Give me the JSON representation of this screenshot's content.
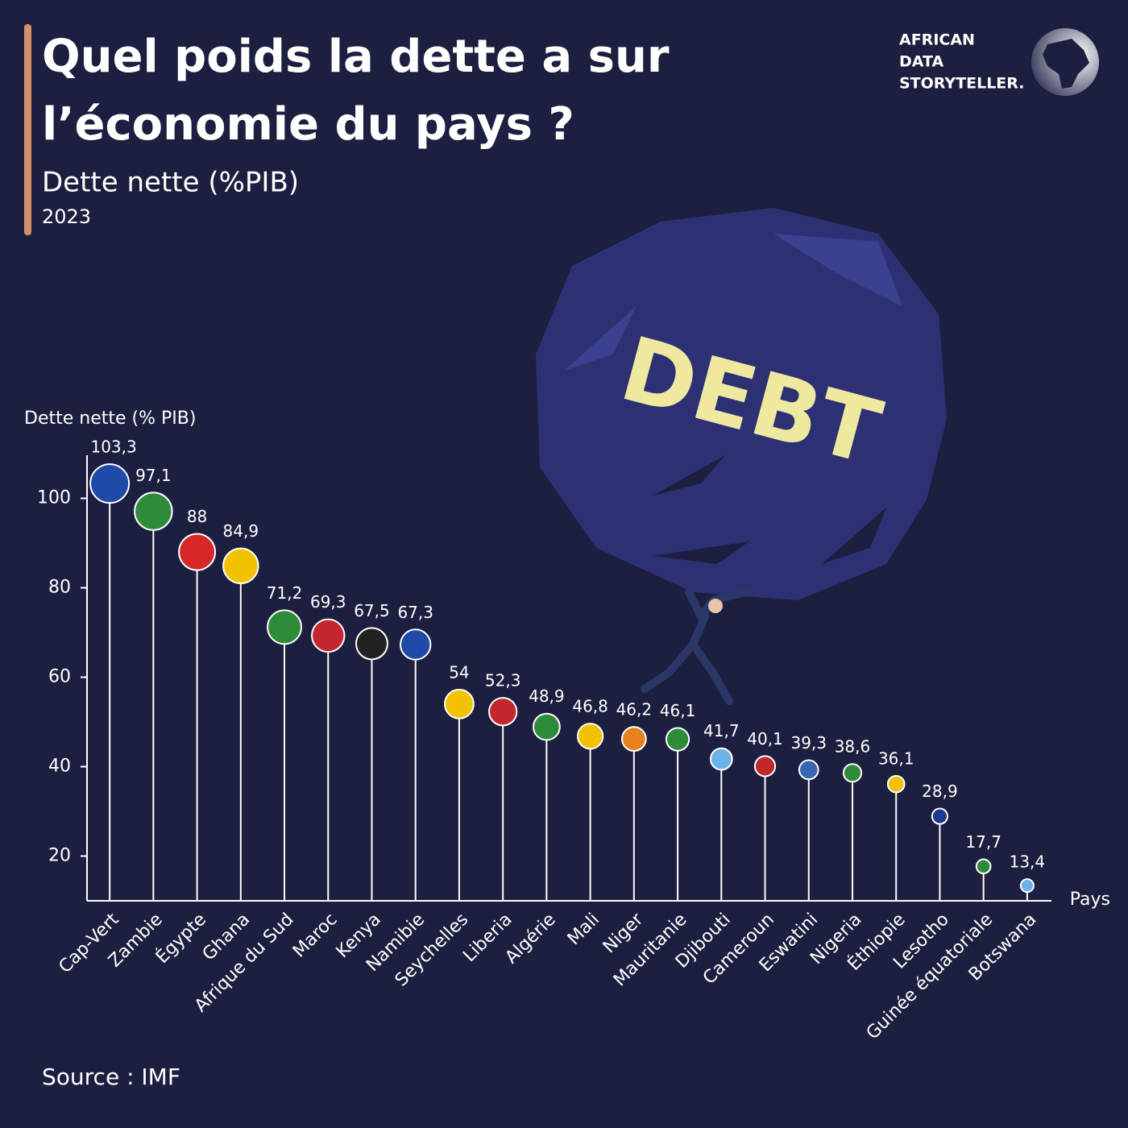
{
  "chart_data": {
    "type": "lollipop",
    "title": [
      "Quel poids la dette a sur",
      "l’économie du pays ?"
    ],
    "subtitle": "Dette nette (%PIB)",
    "year": "2023",
    "y_label": "Dette nette (% PIB)",
    "x_label": "Pays",
    "source": "Source : IMF",
    "logo": [
      "AFRICAN",
      "DATA",
      "STORYTELLER."
    ],
    "illustration_text": "DEBT",
    "categories": [
      "Cap-Vert",
      "Zambie",
      "Égypte",
      "Ghana",
      "Afrique du Sud",
      "Maroc",
      "Kenya",
      "Namibie",
      "Seychelles",
      "Liberia",
      "Algérie",
      "Mali",
      "Niger",
      "Mauritanie",
      "Djibouti",
      "Cameroun",
      "Eswatini",
      "Nigeria",
      "Éthiopie",
      "Lesotho",
      "Guinée équatoriale",
      "Botswana"
    ],
    "values": [
      103.3,
      97.1,
      88,
      84.9,
      71.2,
      69.3,
      67.5,
      67.3,
      54,
      52.3,
      48.9,
      46.8,
      46.2,
      46.1,
      41.7,
      40.1,
      39.3,
      38.6,
      36.1,
      28.9,
      17.7,
      13.4
    ],
    "value_labels": [
      "103,3",
      "97,1",
      "88",
      "84,9",
      "71,2",
      "69,3",
      "67,5",
      "67,3",
      "54",
      "52,3",
      "48,9",
      "46,8",
      "46,2",
      "46,1",
      "41,7",
      "40,1",
      "39,3",
      "38,6",
      "36,1",
      "28,9",
      "17,7",
      "13,4"
    ],
    "colors": [
      "#1f4aa8",
      "#2e8b3a",
      "#d62828",
      "#f2c200",
      "#2e8b3a",
      "#c1272d",
      "#222222",
      "#1f4aa8",
      "#f2c200",
      "#c1272d",
      "#2e8b3a",
      "#f2c200",
      "#e8821e",
      "#2e8b3a",
      "#6ab2e7",
      "#c1272d",
      "#3a66b0",
      "#2e8b3a",
      "#f2c200",
      "#1f3a93",
      "#2e8b3a",
      "#6ab2e7"
    ],
    "line_color": "#ffffff",
    "ylim": [
      10,
      110
    ],
    "yticks": [
      20,
      40,
      60,
      80,
      100
    ]
  }
}
